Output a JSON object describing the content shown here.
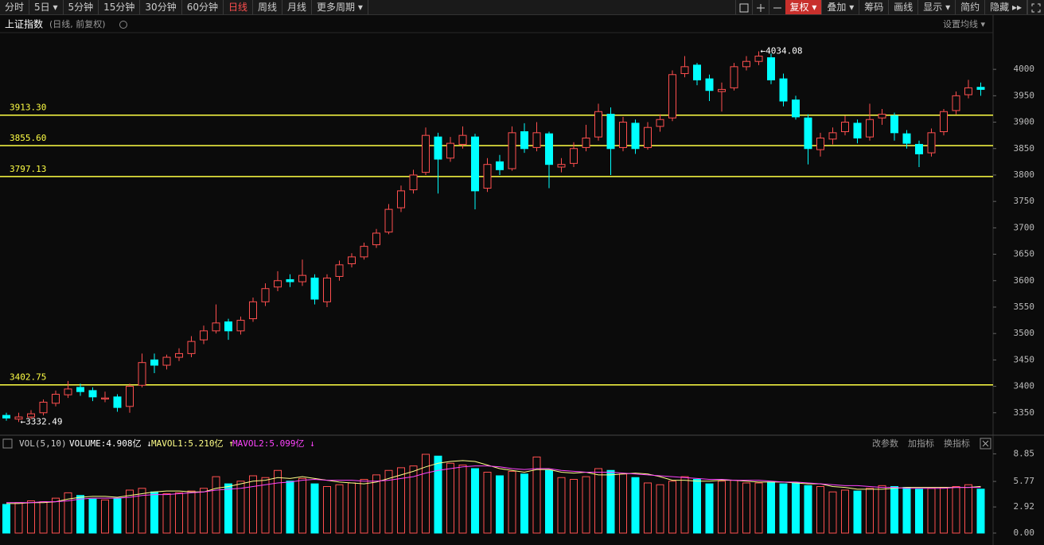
{
  "toolbar": {
    "left": [
      "分时",
      "5日 ▾",
      "5分钟",
      "15分钟",
      "30分钟",
      "60分钟",
      "日线",
      "周线",
      "月线",
      "更多周期 ▾"
    ],
    "active": "日线",
    "right": [
      "复权 ▾",
      "叠加 ▾",
      "筹码",
      "画线",
      "显示 ▾",
      "简约",
      "隐藏 ▸▸"
    ]
  },
  "chart_data": [
    {
      "type": "candlestick",
      "title": "上证指数",
      "subtitle": "(日线, 前复权)",
      "settings_label": "设置均线 ▾",
      "up_color": "#ff4f4f",
      "down_color": "#00ffff",
      "ylim": [
        3309,
        4068
      ],
      "yticks": [
        3350,
        3400,
        3450,
        3500,
        3550,
        3600,
        3650,
        3700,
        3750,
        3800,
        3850,
        3900,
        3950,
        4000
      ],
      "level_color": "#ffff44",
      "levels": [
        {
          "value": 3913.3,
          "label": "3913.30"
        },
        {
          "value": 3855.6,
          "label": "3855.60"
        },
        {
          "value": 3797.13,
          "label": "3797.13"
        },
        {
          "value": 3402.75,
          "label": "3402.75"
        }
      ],
      "annotations": [
        {
          "value": 4034.08,
          "label": "←4034.08"
        },
        {
          "value": 3332.49,
          "label": "←3332.49"
        }
      ],
      "ohlc": [
        [
          3345,
          3350,
          3335,
          3340
        ],
        [
          3338,
          3350,
          3332.49,
          3342
        ],
        [
          3342,
          3355,
          3338,
          3348
        ],
        [
          3350,
          3375,
          3345,
          3370
        ],
        [
          3368,
          3392,
          3362,
          3385
        ],
        [
          3384,
          3410,
          3378,
          3395
        ],
        [
          3398,
          3405,
          3382,
          3390
        ],
        [
          3392,
          3398,
          3372,
          3380
        ],
        [
          3376,
          3390,
          3370,
          3378
        ],
        [
          3380,
          3385,
          3352,
          3360
        ],
        [
          3362,
          3405,
          3350,
          3400
        ],
        [
          3402,
          3462,
          3398,
          3445
        ],
        [
          3450,
          3462,
          3425,
          3440
        ],
        [
          3440,
          3460,
          3432,
          3455
        ],
        [
          3455,
          3472,
          3448,
          3462
        ],
        [
          3462,
          3495,
          3455,
          3485
        ],
        [
          3488,
          3515,
          3480,
          3505
        ],
        [
          3505,
          3555,
          3500,
          3520
        ],
        [
          3522,
          3528,
          3488,
          3505
        ],
        [
          3505,
          3532,
          3498,
          3525
        ],
        [
          3528,
          3568,
          3522,
          3560
        ],
        [
          3560,
          3595,
          3552,
          3585
        ],
        [
          3588,
          3618,
          3580,
          3600
        ],
        [
          3602,
          3612,
          3588,
          3598
        ],
        [
          3598,
          3640,
          3590,
          3610
        ],
        [
          3605,
          3612,
          3555,
          3565
        ],
        [
          3560,
          3612,
          3550,
          3605
        ],
        [
          3608,
          3638,
          3600,
          3630
        ],
        [
          3632,
          3652,
          3625,
          3645
        ],
        [
          3645,
          3672,
          3640,
          3665
        ],
        [
          3668,
          3698,
          3662,
          3690
        ],
        [
          3692,
          3745,
          3688,
          3735
        ],
        [
          3738,
          3780,
          3730,
          3770
        ],
        [
          3772,
          3810,
          3765,
          3800
        ],
        [
          3805,
          3890,
          3800,
          3875
        ],
        [
          3872,
          3880,
          3765,
          3830
        ],
        [
          3832,
          3872,
          3825,
          3860
        ],
        [
          3858,
          3892,
          3850,
          3875
        ],
        [
          3872,
          3878,
          3735,
          3770
        ],
        [
          3775,
          3832,
          3768,
          3820
        ],
        [
          3825,
          3838,
          3800,
          3810
        ],
        [
          3812,
          3892,
          3808,
          3880
        ],
        [
          3882,
          3898,
          3842,
          3850
        ],
        [
          3852,
          3900,
          3845,
          3880
        ],
        [
          3878,
          3882,
          3775,
          3820
        ],
        [
          3815,
          3832,
          3805,
          3820
        ],
        [
          3822,
          3862,
          3815,
          3850
        ],
        [
          3852,
          3895,
          3845,
          3870
        ],
        [
          3872,
          3935,
          3865,
          3920
        ],
        [
          3915,
          3928,
          3800,
          3850
        ],
        [
          3852,
          3910,
          3845,
          3900
        ],
        [
          3898,
          3905,
          3840,
          3850
        ],
        [
          3852,
          3900,
          3848,
          3890
        ],
        [
          3892,
          3915,
          3882,
          3905
        ],
        [
          3908,
          3998,
          3902,
          3990
        ],
        [
          3992,
          4025,
          3985,
          4005
        ],
        [
          4008,
          4012,
          3970,
          3980
        ],
        [
          3982,
          3990,
          3940,
          3960
        ],
        [
          3958,
          3975,
          3920,
          3962
        ],
        [
          3965,
          4012,
          3960,
          4005
        ],
        [
          4005,
          4025,
          3998,
          4015
        ],
        [
          4015,
          4034.08,
          4008,
          4025
        ],
        [
          4022,
          4030,
          3972,
          3980
        ],
        [
          3982,
          3992,
          3930,
          3940
        ],
        [
          3942,
          3950,
          3905,
          3910
        ],
        [
          3908,
          3915,
          3820,
          3850
        ],
        [
          3848,
          3880,
          3835,
          3870
        ],
        [
          3868,
          3890,
          3858,
          3880
        ],
        [
          3882,
          3912,
          3875,
          3900
        ],
        [
          3898,
          3905,
          3860,
          3870
        ],
        [
          3872,
          3935,
          3865,
          3905
        ],
        [
          3908,
          3925,
          3895,
          3915
        ],
        [
          3912,
          3918,
          3865,
          3880
        ],
        [
          3878,
          3885,
          3850,
          3860
        ],
        [
          3858,
          3865,
          3815,
          3840
        ],
        [
          3842,
          3888,
          3835,
          3880
        ],
        [
          3882,
          3925,
          3875,
          3920
        ],
        [
          3922,
          3958,
          3915,
          3950
        ],
        [
          3952,
          3980,
          3945,
          3965
        ],
        [
          3966,
          3975,
          3950,
          3962
        ]
      ]
    },
    {
      "type": "volume",
      "title": "VOL(5,10)",
      "volume_label": "VOLUME:4.908亿 ↓",
      "actions": [
        "改参数",
        "加指标",
        "换指标"
      ],
      "ylim": [
        0,
        9.6
      ],
      "yticks": [
        {
          "value": 0,
          "label": "0.00"
        },
        2.92,
        5.77,
        8.85
      ],
      "values": [
        3.2,
        3.4,
        3.6,
        3.5,
        3.9,
        4.5,
        4.2,
        3.8,
        3.7,
        3.9,
        4.8,
        5.0,
        4.6,
        4.4,
        4.5,
        4.7,
        5.0,
        6.3,
        5.5,
        5.8,
        6.4,
        6.2,
        7.0,
        5.8,
        6.1,
        5.5,
        5.2,
        5.4,
        5.6,
        6.0,
        6.5,
        7.0,
        7.3,
        7.5,
        8.8,
        8.6,
        7.8,
        7.6,
        7.2,
        6.8,
        6.4,
        6.9,
        6.6,
        8.5,
        7.0,
        6.2,
        6.0,
        6.3,
        7.2,
        7.0,
        6.6,
        6.2,
        5.6,
        5.4,
        5.8,
        6.3,
        6.0,
        5.5,
        5.8,
        5.9,
        5.6,
        5.6,
        5.7,
        5.5,
        5.6,
        5.3,
        5.2,
        4.6,
        4.8,
        4.7,
        5.0,
        5.3,
        5.2,
        5.1,
        4.9,
        5.0,
        5.1,
        5.2,
        5.4,
        4.908
      ],
      "series": [
        {
          "name": "MAVOL1:5.210亿 ↑",
          "color": "#ffff88",
          "values": [
            3.3,
            3.3,
            3.4,
            3.4,
            3.5,
            3.8,
            4.0,
            4.1,
            4.1,
            4.0,
            4.2,
            4.4,
            4.6,
            4.7,
            4.7,
            4.6,
            4.6,
            5.0,
            5.2,
            5.5,
            5.8,
            5.9,
            6.2,
            6.1,
            6.3,
            6.1,
            5.9,
            5.7,
            5.6,
            5.5,
            5.7,
            6.1,
            6.5,
            6.9,
            7.4,
            7.8,
            8.0,
            8.1,
            8.0,
            7.6,
            7.2,
            7.0,
            6.8,
            7.1,
            7.1,
            6.8,
            6.7,
            6.8,
            6.5,
            6.5,
            6.6,
            6.7,
            6.6,
            6.3,
            5.9,
            5.9,
            5.8,
            5.8,
            5.9,
            5.9,
            5.8,
            5.7,
            5.7,
            5.7,
            5.6,
            5.5,
            5.5,
            5.2,
            5.1,
            4.9,
            4.9,
            4.9,
            5.0,
            5.1,
            5.1,
            5.1,
            5.1,
            5.1,
            5.1,
            5.21
          ]
        },
        {
          "name": "MAVOL2:5.099亿 ↓",
          "color": "#ff44ff",
          "values": [
            3.4,
            3.4,
            3.4,
            3.5,
            3.5,
            3.6,
            3.8,
            3.9,
            3.9,
            3.9,
            4.0,
            4.2,
            4.3,
            4.3,
            4.4,
            4.5,
            4.6,
            4.8,
            4.9,
            5.0,
            5.2,
            5.4,
            5.6,
            5.7,
            5.9,
            6.0,
            5.9,
            5.9,
            5.9,
            5.8,
            5.8,
            5.9,
            6.1,
            6.3,
            6.7,
            7.0,
            7.2,
            7.4,
            7.5,
            7.5,
            7.4,
            7.2,
            7.1,
            7.2,
            7.2,
            7.0,
            6.9,
            6.8,
            6.8,
            6.8,
            6.7,
            6.6,
            6.5,
            6.4,
            6.3,
            6.2,
            6.1,
            6.0,
            6.0,
            5.9,
            5.9,
            5.9,
            5.8,
            5.7,
            5.7,
            5.6,
            5.5,
            5.4,
            5.3,
            5.3,
            5.2,
            5.1,
            5.1,
            5.0,
            5.0,
            5.0,
            5.0,
            5.1,
            5.1,
            5.099
          ]
        }
      ]
    }
  ]
}
